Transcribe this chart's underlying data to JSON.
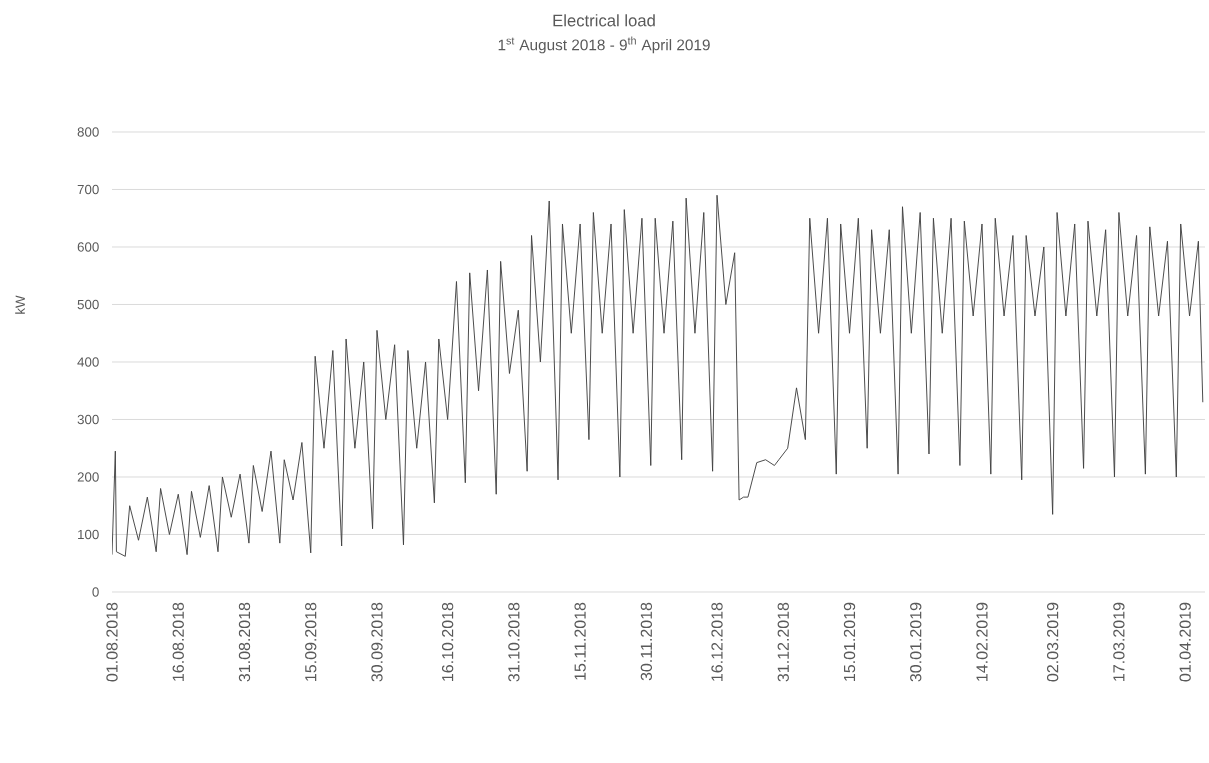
{
  "chart_data": {
    "type": "line",
    "title": "Electrical load",
    "subtitle": "1$^{st}$ August 2018 - 9$^{th}$ April 2019",
    "ylabel": "kW",
    "color": "#404040",
    "grid": "y",
    "xlim": [
      "2018-08-01",
      "2019-04-05T12:00"
    ],
    "ylim": [
      0,
      800
    ],
    "yticks": [
      0,
      100,
      200,
      300,
      400,
      500,
      600,
      700,
      800
    ],
    "xticks": [
      {
        "value": "2018-08-01",
        "label": "01.08.2018"
      },
      {
        "value": "2018-08-16",
        "label": "16.08.2018"
      },
      {
        "value": "2018-08-31",
        "label": "31.08.2018"
      },
      {
        "value": "2018-09-15",
        "label": "15.09.2018"
      },
      {
        "value": "2018-09-30",
        "label": "30.09.2018"
      },
      {
        "value": "2018-10-16",
        "label": "16.10.2018"
      },
      {
        "value": "2018-10-31",
        "label": "31.10.2018"
      },
      {
        "value": "2018-11-15",
        "label": "15.11.2018"
      },
      {
        "value": "2018-11-30",
        "label": "30.11.2018"
      },
      {
        "value": "2018-12-16",
        "label": "16.12.2018"
      },
      {
        "value": "2018-12-31",
        "label": "31.12.2018"
      },
      {
        "value": "2019-01-15",
        "label": "15.01.2019"
      },
      {
        "value": "2019-01-30",
        "label": "30.01.2019"
      },
      {
        "value": "2019-02-14",
        "label": "14.02.2019"
      },
      {
        "value": "2019-03-02",
        "label": "02.03.2019"
      },
      {
        "value": "2019-03-17",
        "label": "17.03.2019"
      },
      {
        "value": "2019-04-01",
        "label": "01.04.2019"
      }
    ],
    "x": [
      "2018-08-01",
      "2018-08-01T18:00",
      "2018-08-02",
      "2018-08-04",
      "2018-08-05",
      "2018-08-07",
      "2018-08-09",
      "2018-08-11",
      "2018-08-12",
      "2018-08-14",
      "2018-08-16",
      "2018-08-18",
      "2018-08-19",
      "2018-08-21",
      "2018-08-23",
      "2018-08-25",
      "2018-08-26",
      "2018-08-28",
      "2018-08-30",
      "2018-09-01",
      "2018-09-02",
      "2018-09-04",
      "2018-09-06",
      "2018-09-08",
      "2018-09-09",
      "2018-09-11",
      "2018-09-13",
      "2018-09-15",
      "2018-09-16",
      "2018-09-18",
      "2018-09-20",
      "2018-09-22",
      "2018-09-23",
      "2018-09-25",
      "2018-09-27",
      "2018-09-29",
      "2018-09-30",
      "2018-10-02",
      "2018-10-04",
      "2018-10-06",
      "2018-10-07",
      "2018-10-09",
      "2018-10-11",
      "2018-10-13",
      "2018-10-14",
      "2018-10-16",
      "2018-10-18",
      "2018-10-20",
      "2018-10-21",
      "2018-10-23",
      "2018-10-25",
      "2018-10-27",
      "2018-10-28",
      "2018-10-30",
      "2018-11-01",
      "2018-11-03",
      "2018-11-04",
      "2018-11-06",
      "2018-11-08",
      "2018-11-10",
      "2018-11-11",
      "2018-11-13",
      "2018-11-15",
      "2018-11-17",
      "2018-11-18",
      "2018-11-20",
      "2018-11-22",
      "2018-11-24",
      "2018-11-25",
      "2018-11-27",
      "2018-11-29",
      "2018-12-01",
      "2018-12-02",
      "2018-12-04",
      "2018-12-06",
      "2018-12-08",
      "2018-12-09",
      "2018-12-11",
      "2018-12-13",
      "2018-12-15",
      "2018-12-16",
      "2018-12-18",
      "2018-12-20",
      "2018-12-21",
      "2018-12-22",
      "2018-12-23",
      "2018-12-25",
      "2018-12-27",
      "2018-12-29",
      "2018-12-30",
      "2019-01-01",
      "2019-01-03",
      "2019-01-05",
      "2019-01-06",
      "2019-01-08",
      "2019-01-10",
      "2019-01-12",
      "2019-01-13",
      "2019-01-15",
      "2019-01-17",
      "2019-01-19",
      "2019-01-20",
      "2019-01-22",
      "2019-01-24",
      "2019-01-26",
      "2019-01-27",
      "2019-01-29",
      "2019-01-31",
      "2019-02-02",
      "2019-02-03",
      "2019-02-05",
      "2019-02-07",
      "2019-02-09",
      "2019-02-10",
      "2019-02-12",
      "2019-02-14",
      "2019-02-16",
      "2019-02-17",
      "2019-02-19",
      "2019-02-21",
      "2019-02-23",
      "2019-02-24",
      "2019-02-26",
      "2019-02-28",
      "2019-03-02",
      "2019-03-03",
      "2019-03-05",
      "2019-03-07",
      "2019-03-09",
      "2019-03-10",
      "2019-03-12",
      "2019-03-14",
      "2019-03-16",
      "2019-03-17",
      "2019-03-19",
      "2019-03-21",
      "2019-03-23",
      "2019-03-24",
      "2019-03-26",
      "2019-03-28",
      "2019-03-30",
      "2019-03-31",
      "2019-04-02",
      "2019-04-04",
      "2019-04-05"
    ],
    "values": [
      65,
      245,
      70,
      62,
      150,
      90,
      165,
      70,
      180,
      100,
      170,
      65,
      175,
      95,
      185,
      70,
      200,
      130,
      205,
      85,
      220,
      140,
      245,
      85,
      230,
      160,
      260,
      68,
      410,
      250,
      420,
      80,
      440,
      250,
      400,
      110,
      455,
      300,
      430,
      82,
      420,
      250,
      400,
      155,
      440,
      300,
      540,
      190,
      555,
      350,
      560,
      170,
      575,
      380,
      490,
      210,
      620,
      400,
      680,
      195,
      640,
      450,
      640,
      265,
      660,
      450,
      640,
      200,
      665,
      450,
      650,
      220,
      650,
      450,
      645,
      230,
      685,
      450,
      660,
      210,
      690,
      500,
      590,
      160,
      165,
      165,
      225,
      230,
      220,
      230,
      250,
      355,
      265,
      650,
      450,
      650,
      205,
      640,
      450,
      650,
      250,
      630,
      450,
      630,
      205,
      670,
      450,
      660,
      240,
      650,
      450,
      650,
      220,
      645,
      480,
      640,
      205,
      650,
      480,
      620,
      195,
      620,
      480,
      600,
      135,
      660,
      480,
      640,
      215,
      645,
      480,
      630,
      200,
      660,
      480,
      620,
      205,
      635,
      480,
      610,
      200,
      640,
      480,
      610,
      330
    ]
  }
}
